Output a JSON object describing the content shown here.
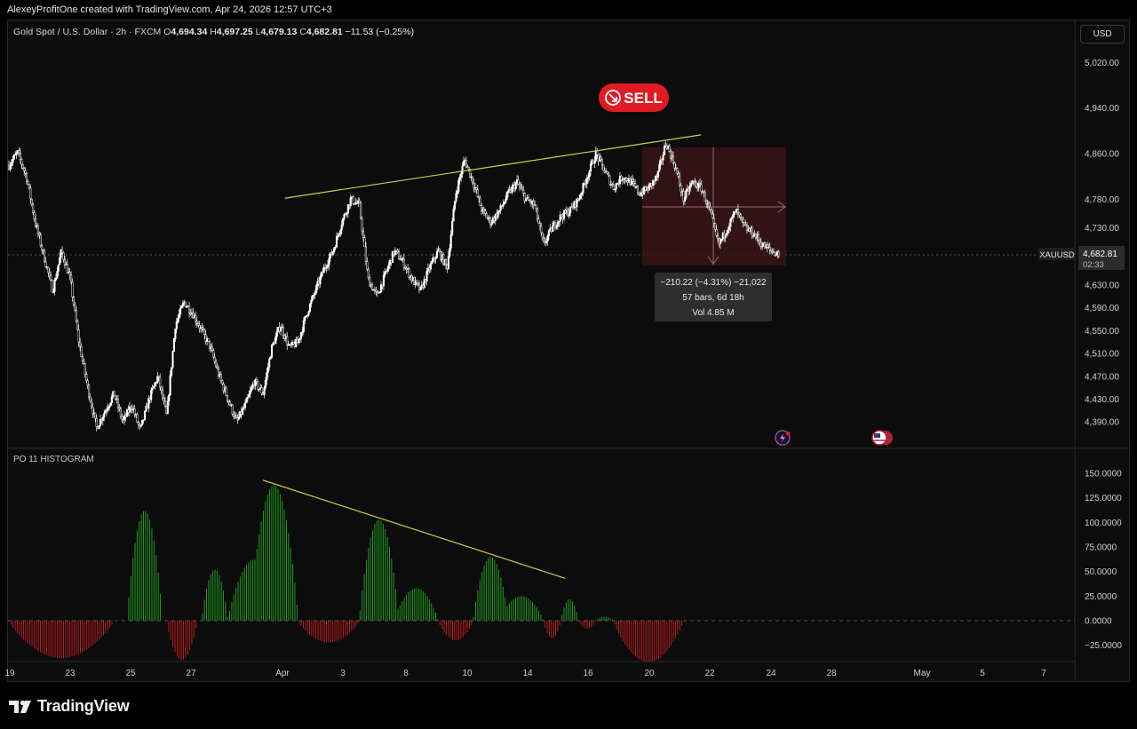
{
  "header": {
    "attribution": "AlexeyProfitOne created with TradingView.com, Apr 24, 2026 12:57 UTC+3"
  },
  "legend": {
    "symbol": "Gold Spot / U.S. Dollar · 2h · FXCM",
    "o_label": "O",
    "o_value": "4,694.34",
    "h_label": "H",
    "h_value": "4,697.25",
    "l_label": "L",
    "l_value": "4,679.13",
    "c_label": "C",
    "c_value": "4,682.81",
    "change": "−11.53 (−0.25%)"
  },
  "currency_button": "USD",
  "sell_badge": "SELL",
  "price_label": {
    "ticker": "XAUUSD",
    "price": "4,682.81",
    "countdown": "02:33"
  },
  "measure_tooltip": {
    "line1": "−210.22 (−4.31%) −21,022",
    "line2": "57 bars, 6d 18h",
    "line3": "Vol 4.85 M"
  },
  "indicator_title": "PO 11 HISTOGRAM",
  "footer": {
    "brand": "TradingView"
  },
  "colors": {
    "background": "#0c0c0c",
    "candle": "#ffffff",
    "trendline": "#d6c84a",
    "hist_up": "#1f9d1f",
    "hist_down": "#b91c1c",
    "sell": "#e01b24",
    "measure_box": "#3a1518"
  },
  "chart_data": [
    {
      "type": "candlestick",
      "title": "",
      "y_ticks": [
        "5,020.00",
        "4,940.00",
        "4,860.00",
        "4,780.00",
        "4,730.00",
        "4,630.00",
        "4,590.00",
        "4,550.00",
        "4,510.00",
        "4,470.00",
        "4,430.00",
        "4,390.00"
      ],
      "x_ticks": [
        "19",
        "23",
        "25",
        "27",
        "Apr",
        "3",
        "8",
        "10",
        "14",
        "16",
        "20",
        "22",
        "24",
        "28",
        "May",
        "5",
        "7"
      ],
      "last_price": 4682.81,
      "close_path": [
        [
          0,
          4840
        ],
        [
          1,
          4862
        ],
        [
          2,
          4820
        ],
        [
          3,
          4740
        ],
        [
          4,
          4680
        ],
        [
          5,
          4620
        ],
        [
          6,
          4690
        ],
        [
          7,
          4640
        ],
        [
          8,
          4530
        ],
        [
          9,
          4450
        ],
        [
          10,
          4380
        ],
        [
          11,
          4410
        ],
        [
          12,
          4440
        ],
        [
          13,
          4390
        ],
        [
          14,
          4420
        ],
        [
          15,
          4375
        ],
        [
          16,
          4430
        ],
        [
          17,
          4470
        ],
        [
          18,
          4400
        ],
        [
          19,
          4560
        ],
        [
          20,
          4600
        ],
        [
          21,
          4580
        ],
        [
          22,
          4550
        ],
        [
          23,
          4520
        ],
        [
          24,
          4470
        ],
        [
          25,
          4430
        ],
        [
          26,
          4390
        ],
        [
          27,
          4420
        ],
        [
          28,
          4460
        ],
        [
          29,
          4440
        ],
        [
          30,
          4520
        ],
        [
          31,
          4560
        ],
        [
          32,
          4520
        ],
        [
          33,
          4530
        ],
        [
          34,
          4580
        ],
        [
          35,
          4620
        ],
        [
          36,
          4660
        ],
        [
          37,
          4690
        ],
        [
          38,
          4740
        ],
        [
          39,
          4780
        ],
        [
          40,
          4770
        ],
        [
          41,
          4640
        ],
        [
          42,
          4610
        ],
        [
          43,
          4650
        ],
        [
          44,
          4690
        ],
        [
          45,
          4670
        ],
        [
          46,
          4640
        ],
        [
          47,
          4620
        ],
        [
          48,
          4660
        ],
        [
          49,
          4690
        ],
        [
          50,
          4660
        ],
        [
          51,
          4790
        ],
        [
          52,
          4850
        ],
        [
          53,
          4810
        ],
        [
          54,
          4760
        ],
        [
          55,
          4740
        ],
        [
          56,
          4760
        ],
        [
          57,
          4790
        ],
        [
          58,
          4810
        ],
        [
          59,
          4780
        ],
        [
          60,
          4770
        ],
        [
          61,
          4700
        ],
        [
          62,
          4730
        ],
        [
          63,
          4750
        ],
        [
          64,
          4760
        ],
        [
          65,
          4780
        ],
        [
          66,
          4820
        ],
        [
          67,
          4860
        ],
        [
          68,
          4830
        ],
        [
          69,
          4800
        ],
        [
          70,
          4820
        ],
        [
          71,
          4810
        ],
        [
          72,
          4790
        ],
        [
          73,
          4800
        ],
        [
          74,
          4820
        ],
        [
          75,
          4880
        ],
        [
          76,
          4840
        ],
        [
          77,
          4780
        ],
        [
          78,
          4810
        ],
        [
          79,
          4800
        ],
        [
          80,
          4760
        ],
        [
          81,
          4700
        ],
        [
          82,
          4730
        ],
        [
          83,
          4760
        ],
        [
          84,
          4730
        ],
        [
          85,
          4720
        ],
        [
          86,
          4700
        ],
        [
          87,
          4690
        ],
        [
          88,
          4683
        ]
      ],
      "trendline": {
        "from": [
          31.5,
          4782
        ],
        "to": [
          79,
          4893
        ]
      },
      "measure": {
        "from_index": 79,
        "to_index": 88,
        "top": 4875,
        "bottom": 4665,
        "tooltip": [
          "−210.22 (−4.31%) −21,022",
          "57 bars, 6d 18h",
          "Vol 4.85 M"
        ]
      }
    },
    {
      "type": "histogram",
      "title": "PO 11 HISTOGRAM",
      "y_ticks": [
        "150.0000",
        "125.0000",
        "100.0000",
        "75.0000",
        "50.0000",
        "25.0000",
        "0.0000",
        "−25.0000"
      ],
      "ylim": [
        -42,
        165
      ],
      "waves": [
        {
          "start": 0,
          "end": 12,
          "peak": -38
        },
        {
          "start": 13.5,
          "end": 17.5,
          "peak": 112
        },
        {
          "start": 18,
          "end": 21.5,
          "peak": -40
        },
        {
          "start": 22,
          "end": 25,
          "peak": 52
        },
        {
          "start": 25,
          "end": 31,
          "peak": 62
        },
        {
          "start": 27.5,
          "end": 33,
          "peak": 138
        },
        {
          "start": 33,
          "end": 40,
          "peak": -22
        },
        {
          "start": 40,
          "end": 44.5,
          "peak": 103
        },
        {
          "start": 44,
          "end": 49,
          "peak": 33
        },
        {
          "start": 49,
          "end": 53,
          "peak": -20
        },
        {
          "start": 53,
          "end": 57,
          "peak": 65
        },
        {
          "start": 56,
          "end": 61,
          "peak": 25
        },
        {
          "start": 61,
          "end": 63,
          "peak": -18
        },
        {
          "start": 63,
          "end": 65,
          "peak": 22
        },
        {
          "start": 65,
          "end": 67,
          "peak": -8
        },
        {
          "start": 67,
          "end": 69,
          "peak": 4
        },
        {
          "start": 69,
          "end": 77,
          "peak": -42
        }
      ],
      "trendline": {
        "from": [
          29,
          143
        ],
        "to": [
          63.5,
          43
        ]
      }
    }
  ]
}
